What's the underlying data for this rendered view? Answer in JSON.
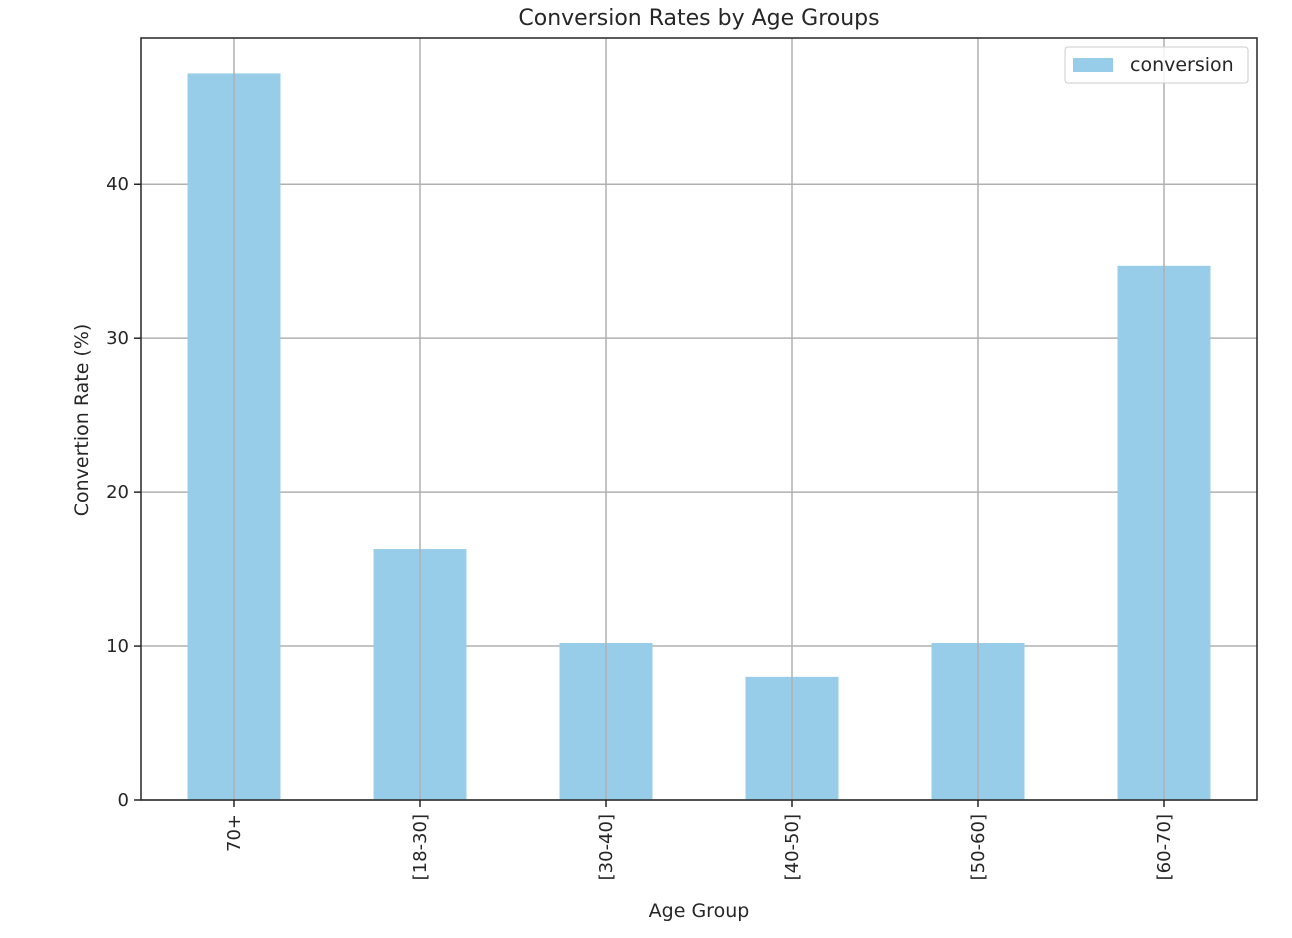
{
  "chart_data": {
    "type": "bar",
    "title": "Conversion Rates by Age Groups",
    "xlabel": "Age Group",
    "ylabel": "Convertion Rate (%)",
    "categories": [
      "70+",
      "[18-30]",
      "[30-40]",
      "[40-50]",
      "[50-60]",
      "[60-70]"
    ],
    "series": [
      {
        "name": "conversion",
        "values": [
          47.2,
          16.3,
          10.2,
          8.0,
          10.2,
          34.7
        ],
        "color": "#97cde8"
      }
    ],
    "ylim": [
      0,
      49.5
    ],
    "yticks": [
      0,
      10,
      20,
      30,
      40
    ],
    "grid": true,
    "legend_position": "top-right"
  }
}
